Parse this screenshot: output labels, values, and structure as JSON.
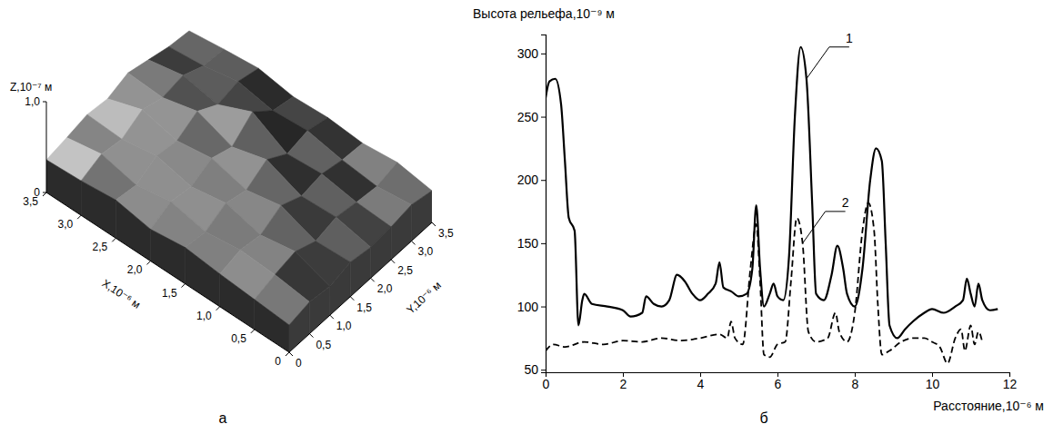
{
  "chart_data": [
    {
      "type": "surface",
      "panel_label": "а",
      "x_label": "X,10⁻⁶ м",
      "y_label": "Y,10⁻⁶ м",
      "z_label": "Z,10⁻⁷ м",
      "x": [
        0,
        0.5,
        1,
        1.5,
        2,
        2.5,
        3,
        3.5
      ],
      "y": [
        0,
        0.5,
        1,
        1.5,
        2,
        2.5,
        3,
        3.5
      ],
      "z": [
        [
          0.3,
          0.35,
          0.32,
          0.38,
          0.34,
          0.36,
          0.4,
          0.35
        ],
        [
          0.33,
          0.4,
          0.45,
          0.36,
          0.42,
          0.38,
          0.35,
          0.41
        ],
        [
          0.36,
          0.42,
          0.38,
          0.5,
          0.4,
          0.44,
          0.39,
          0.37
        ],
        [
          0.4,
          0.37,
          0.48,
          0.42,
          0.55,
          0.41,
          0.46,
          0.4
        ],
        [
          0.35,
          0.45,
          0.41,
          0.52,
          0.44,
          0.62,
          0.43,
          0.38
        ],
        [
          0.42,
          0.38,
          0.5,
          0.46,
          0.58,
          0.45,
          0.5,
          0.44
        ],
        [
          0.38,
          0.47,
          0.43,
          0.55,
          0.48,
          0.52,
          0.42,
          0.4
        ],
        [
          0.36,
          0.4,
          0.45,
          0.42,
          0.5,
          0.44,
          0.38,
          0.35
        ]
      ],
      "xlim": [
        0,
        3.5
      ],
      "ylim": [
        0,
        3.5
      ],
      "zlim": [
        0,
        1
      ],
      "xticks": [
        0,
        {
          "value": 0.5,
          "label": "0,5"
        },
        {
          "value": 1,
          "label": "1,0"
        },
        {
          "value": 1.5,
          "label": "1,5"
        },
        {
          "value": 2,
          "label": "2,0"
        },
        {
          "value": 2.5,
          "label": "2,5"
        },
        {
          "value": 3,
          "label": "3,0"
        },
        {
          "value": 3.5,
          "label": "3,5"
        }
      ],
      "yticks": [
        0,
        {
          "value": 0.5,
          "label": "0,5"
        },
        {
          "value": 1,
          "label": "1,0"
        },
        {
          "value": 1.5,
          "label": "1,5"
        },
        {
          "value": 2,
          "label": "2,0"
        },
        {
          "value": 2.5,
          "label": "2,5"
        },
        {
          "value": 3,
          "label": "3,0"
        },
        {
          "value": 3.5,
          "label": "3,5"
        }
      ],
      "zticks": [
        0,
        {
          "value": 1,
          "label": "1,0"
        }
      ]
    },
    {
      "type": "line",
      "panel_label": "б",
      "x_label": "Расстояние,10⁻⁶ м",
      "y_label": "Высота рельефа,10⁻⁹ м",
      "xlim": [
        0,
        12
      ],
      "ylim": [
        48,
        315
      ],
      "xticks": [
        0,
        2,
        4,
        6,
        8,
        10,
        12
      ],
      "yticks": [
        50,
        100,
        150,
        200,
        250,
        300
      ],
      "grid": false,
      "series": [
        {
          "color": "#000000",
          "line_style": "solid",
          "x": [
            0,
            0.1,
            0.25,
            0.4,
            0.5,
            0.6,
            0.75,
            0.85,
            0.95,
            1.0,
            1.2,
            1.6,
            2.0,
            2.2,
            2.5,
            2.6,
            2.8,
            3.0,
            3.2,
            3.4,
            3.6,
            3.8,
            4.0,
            4.2,
            4.4,
            4.5,
            4.6,
            4.8,
            5.0,
            5.2,
            5.35,
            5.45,
            5.55,
            5.65,
            5.8,
            5.9,
            6.0,
            6.15,
            6.3,
            6.45,
            6.6,
            6.75,
            6.9,
            7.0,
            7.2,
            7.4,
            7.55,
            7.7,
            7.8,
            8.0,
            8.2,
            8.4,
            8.55,
            8.7,
            8.8,
            8.9,
            9.1,
            9.3,
            9.5,
            9.8,
            10.0,
            10.3,
            10.6,
            10.8,
            10.9,
            11.0,
            11.1,
            11.2,
            11.3,
            11.5,
            11.7
          ],
          "values": [
            265,
            278,
            280,
            260,
            215,
            170,
            160,
            85,
            105,
            110,
            102,
            100,
            97,
            92,
            95,
            108,
            102,
            100,
            105,
            125,
            120,
            110,
            105,
            110,
            118,
            135,
            115,
            112,
            108,
            110,
            130,
            180,
            130,
            100,
            110,
            118,
            108,
            105,
            140,
            250,
            305,
            280,
            180,
            110,
            105,
            125,
            148,
            130,
            110,
            100,
            130,
            200,
            225,
            215,
            150,
            85,
            75,
            82,
            88,
            95,
            98,
            95,
            100,
            105,
            122,
            110,
            100,
            118,
            105,
            97,
            98
          ]
        },
        {
          "color": "#000000",
          "line_style": "dashed",
          "x": [
            0,
            0.2,
            0.5,
            1,
            1.5,
            2,
            2.5,
            3,
            3.5,
            4,
            4.5,
            4.7,
            4.8,
            4.9,
            5.1,
            5.3,
            5.45,
            5.55,
            5.65,
            5.8,
            6.0,
            6.2,
            6.35,
            6.5,
            6.65,
            6.8,
            7.0,
            7.3,
            7.5,
            7.6,
            7.8,
            8.0,
            8.2,
            8.35,
            8.5,
            8.6,
            8.7,
            8.9,
            9.2,
            9.5,
            9.8,
            10.0,
            10.2,
            10.4,
            10.6,
            10.75,
            10.85,
            11.0,
            11.1,
            11.2,
            11.3
          ],
          "values": [
            65,
            70,
            68,
            72,
            70,
            73,
            72,
            75,
            73,
            75,
            78,
            75,
            88,
            75,
            70,
            130,
            165,
            120,
            62,
            60,
            70,
            72,
            120,
            170,
            150,
            80,
            72,
            75,
            95,
            80,
            72,
            95,
            160,
            182,
            160,
            100,
            62,
            65,
            72,
            75,
            75,
            72,
            68,
            55,
            75,
            82,
            65,
            85,
            70,
            80,
            72
          ]
        }
      ],
      "annotations": [
        {
          "text": "1",
          "x": 6.75,
          "y": 280
        },
        {
          "text": "2",
          "x": 6.65,
          "y": 150
        }
      ]
    }
  ]
}
